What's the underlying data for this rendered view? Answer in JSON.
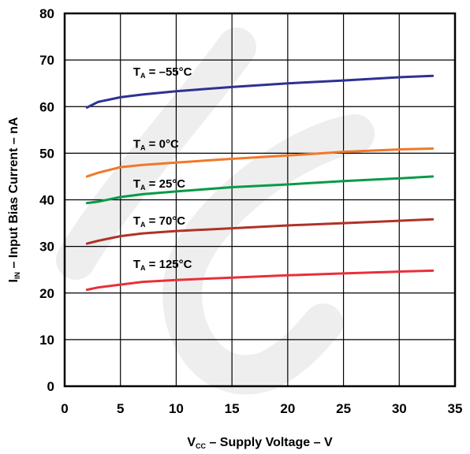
{
  "chart_data": {
    "type": "line",
    "xlabel": {
      "main": "V",
      "sub": "CC",
      "rest": " – Supply Voltage – V"
    },
    "ylabel": {
      "main": "I",
      "sub": "IN",
      "rest": " – Input Bias Current – nA"
    },
    "xlim": [
      0,
      35
    ],
    "ylim": [
      0,
      80
    ],
    "xticks": [
      0,
      5,
      10,
      15,
      20,
      25,
      30,
      35
    ],
    "yticks": [
      0,
      10,
      20,
      30,
      40,
      50,
      60,
      70,
      80
    ],
    "grid": true,
    "series": [
      {
        "name": {
          "main": "T",
          "sub": "A",
          "rest": " = –55°C"
        },
        "color": "#2e3192",
        "x": [
          2,
          3,
          5,
          7,
          10,
          15,
          20,
          25,
          30,
          33
        ],
        "y": [
          59.8,
          61,
          62,
          62.6,
          63.3,
          64.2,
          65,
          65.6,
          66.3,
          66.6
        ]
      },
      {
        "name": {
          "main": "T",
          "sub": "A",
          "rest": " = 0°C"
        },
        "color": "#f07828",
        "x": [
          2,
          3,
          5,
          7,
          10,
          15,
          20,
          25,
          30,
          33
        ],
        "y": [
          45,
          45.8,
          47,
          47.5,
          48,
          48.8,
          49.5,
          50.3,
          50.8,
          51
        ]
      },
      {
        "name": {
          "main": "T",
          "sub": "A",
          "rest": " = 25°C"
        },
        "color": "#0a9a48",
        "x": [
          2,
          3,
          5,
          7,
          10,
          15,
          20,
          25,
          30,
          33
        ],
        "y": [
          39.3,
          39.6,
          40.6,
          41.2,
          41.8,
          42.7,
          43.3,
          44,
          44.6,
          45
        ]
      },
      {
        "name": {
          "main": "T",
          "sub": "A",
          "rest": " = 70°C"
        },
        "color": "#b03228",
        "x": [
          2,
          3,
          5,
          7,
          10,
          15,
          20,
          25,
          30,
          33
        ],
        "y": [
          30.6,
          31.2,
          32.2,
          32.8,
          33.3,
          33.9,
          34.5,
          35,
          35.5,
          35.8
        ]
      },
      {
        "name": {
          "main": "T",
          "sub": "A",
          "rest": " = 125°C"
        },
        "color": "#e8303a",
        "x": [
          2,
          3,
          5,
          7,
          10,
          15,
          20,
          25,
          30,
          33
        ],
        "y": [
          20.7,
          21.2,
          21.8,
          22.4,
          22.8,
          23.3,
          23.8,
          24.2,
          24.6,
          24.8
        ]
      }
    ]
  }
}
